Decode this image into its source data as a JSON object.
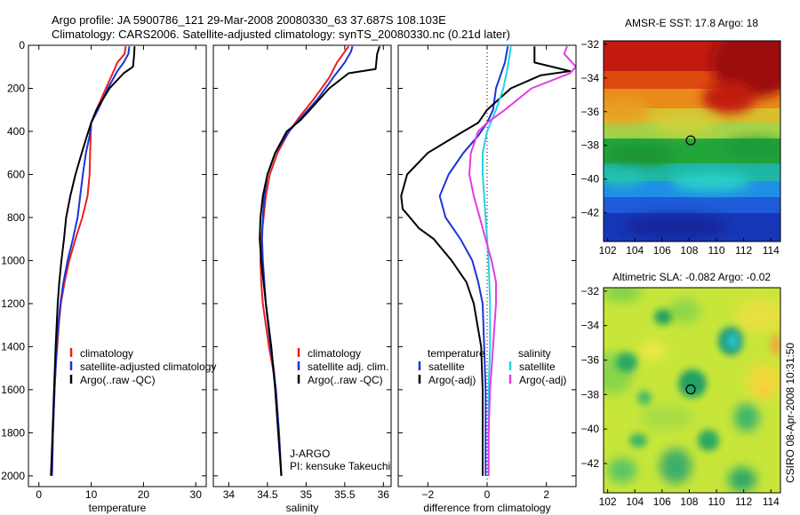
{
  "header": {
    "line1": "Argo profile: JA 5900786_121 29-Mar-2008 20080330_63 37.687S 108.103E",
    "line2": "Climatology: CARS2006. Satellite-adjusted climatology: synTS_20080330.nc (0.21d later)"
  },
  "side_note": "CSIRO 08-Apr-2008 10:31:50",
  "colors": {
    "climatology": "#e8201e",
    "satellite": "#1a35d6",
    "argo": "#000000",
    "satellite_salinity_diff": "#22d4e4",
    "argo_salinity_diff": "#e23ce6"
  },
  "chart_data": [
    {
      "type": "line",
      "xlabel": "temperature",
      "xlim": [
        -2,
        32
      ],
      "ylim": [
        0,
        2050
      ],
      "y_reversed": true,
      "xticks": [
        0,
        10,
        20,
        30
      ],
      "yticks": [
        0,
        200,
        400,
        600,
        800,
        1000,
        1200,
        1400,
        1600,
        1800,
        2000
      ],
      "series": [
        {
          "name": "climatology",
          "color": "#e8201e",
          "depth": [
            5,
            40,
            80,
            120,
            200,
            300,
            360,
            420,
            500,
            600,
            700,
            800,
            900,
            1000,
            1100,
            1200,
            1300,
            1400,
            1500,
            1600,
            1800,
            2000
          ],
          "values": [
            16.6,
            16.4,
            15.0,
            14.3,
            12.8,
            11.0,
            10.0,
            9.9,
            9.8,
            9.7,
            9.3,
            8.3,
            7.0,
            5.8,
            4.9,
            4.2,
            3.8,
            3.5,
            3.2,
            3.0,
            2.7,
            2.5
          ]
        },
        {
          "name": "satellite-adjusted climatology",
          "color": "#1a35d6",
          "depth": [
            5,
            40,
            80,
            120,
            200,
            300,
            360,
            420,
            500,
            600,
            700,
            800,
            900,
            1000,
            1100,
            1200,
            1300,
            1400,
            1500,
            1600,
            1800,
            2000
          ],
          "values": [
            17.3,
            17.1,
            16.2,
            15.0,
            13.2,
            11.3,
            10.0,
            9.7,
            9.0,
            8.4,
            7.9,
            7.4,
            6.5,
            5.5,
            4.7,
            4.1,
            3.7,
            3.4,
            3.2,
            3.0,
            2.7,
            2.5
          ]
        },
        {
          "name": "Argo(..raw -QC)",
          "color": "#000000",
          "depth": [
            5,
            50,
            100,
            130,
            200,
            300,
            360,
            420,
            500,
            600,
            700,
            800,
            900,
            1000,
            1100,
            1200,
            1400,
            1600,
            1800,
            2000
          ],
          "values": [
            18.3,
            18.2,
            18.0,
            16.2,
            13.5,
            11.0,
            10.0,
            9.2,
            8.2,
            7.0,
            6.0,
            5.2,
            4.8,
            4.3,
            3.9,
            3.6,
            3.2,
            2.9,
            2.6,
            2.3
          ]
        }
      ],
      "legend": {
        "items": [
          "climatology",
          "satellite-adjusted climatology",
          "Argo(..raw -QC)"
        ],
        "colors": [
          "#e8201e",
          "#1a35d6",
          "#000000"
        ]
      }
    },
    {
      "type": "line",
      "xlabel": "salinity",
      "xlim": [
        33.8,
        36.1
      ],
      "ylim": [
        0,
        2050
      ],
      "y_reversed": true,
      "xticks": [
        34,
        34.5,
        35,
        35.5,
        36
      ],
      "xticklabels": [
        "34",
        "34.5",
        "35",
        "35.5",
        "36"
      ],
      "series": [
        {
          "name": "climatology",
          "color": "#e8201e",
          "depth": [
            5,
            30,
            80,
            150,
            250,
            330,
            400,
            500,
            600,
            700,
            800,
            900,
            1000,
            1100,
            1200,
            1300,
            1400,
            1500,
            1600,
            1800,
            2000
          ],
          "values": [
            35.55,
            35.5,
            35.4,
            35.3,
            35.1,
            34.92,
            34.78,
            34.63,
            34.53,
            34.48,
            34.45,
            34.42,
            34.41,
            34.42,
            34.44,
            34.48,
            34.52,
            34.57,
            34.61,
            34.65,
            34.68
          ]
        },
        {
          "name": "satellite adj. clim.",
          "color": "#1a35d6",
          "depth": [
            5,
            30,
            80,
            150,
            250,
            330,
            400,
            500,
            600,
            700,
            800,
            900,
            1000,
            1100,
            1200,
            1300,
            1400,
            1500,
            1600,
            1800,
            2000
          ],
          "values": [
            35.6,
            35.58,
            35.5,
            35.35,
            35.15,
            34.95,
            34.78,
            34.6,
            34.5,
            34.46,
            34.44,
            34.43,
            34.44,
            34.46,
            34.48,
            34.51,
            34.54,
            34.58,
            34.61,
            34.65,
            34.68
          ]
        },
        {
          "name": "Argo(..raw -QC)",
          "color": "#000000",
          "depth": [
            5,
            40,
            110,
            130,
            200,
            300,
            350,
            400,
            500,
            600,
            700,
            800,
            900,
            1000,
            1100,
            1200,
            1400,
            1600,
            1800,
            2000
          ],
          "values": [
            35.95,
            35.92,
            35.9,
            35.55,
            35.3,
            35.05,
            34.92,
            34.75,
            34.6,
            34.5,
            34.44,
            34.41,
            34.4,
            34.42,
            34.45,
            34.48,
            34.55,
            34.6,
            34.64,
            34.68
          ]
        }
      ],
      "legend": {
        "items": [
          "climatology",
          "satellite adj. clim.",
          "Argo(..raw -QC)"
        ],
        "colors": [
          "#e8201e",
          "#1a35d6",
          "#000000"
        ]
      },
      "annotation": [
        "J-ARGO",
        "PI: kensuke Takeuchi"
      ]
    },
    {
      "type": "line",
      "xlabel": "difference from climatology",
      "xlim": [
        -3,
        3
      ],
      "ylim": [
        0,
        2050
      ],
      "y_reversed": true,
      "xticks": [
        -2,
        0,
        2
      ],
      "zero_line": 0,
      "series": [
        {
          "name": "temperature satellite",
          "color": "#1a35d6",
          "depth": [
            5,
            80,
            200,
            300,
            360,
            420,
            500,
            600,
            700,
            800,
            900,
            1000,
            1100,
            1200,
            1400,
            1600,
            1800,
            2000
          ],
          "values": [
            0.7,
            0.6,
            0.3,
            0.2,
            0.0,
            -0.3,
            -0.8,
            -1.3,
            -1.6,
            -1.4,
            -0.9,
            -0.5,
            -0.3,
            -0.15,
            -0.1,
            -0.05,
            -0.05,
            -0.05
          ]
        },
        {
          "name": "temperature Argo(-adj)",
          "color": "#000000",
          "depth": [
            5,
            80,
            120,
            140,
            200,
            300,
            360,
            400,
            500,
            600,
            700,
            760,
            800,
            850,
            900,
            1000,
            1100,
            1200,
            1400,
            1600,
            1800,
            2000
          ],
          "values": [
            1.6,
            1.6,
            2.8,
            1.8,
            0.8,
            0.0,
            -0.3,
            -0.8,
            -2.0,
            -2.7,
            -2.9,
            -2.85,
            -2.6,
            -2.3,
            -1.8,
            -1.2,
            -0.7,
            -0.45,
            -0.2,
            -0.15,
            -0.15,
            -0.15
          ]
        },
        {
          "name": "salinity satellite",
          "color": "#22d4e4",
          "depth": [
            5,
            100,
            200,
            300,
            400,
            500,
            600,
            700,
            800,
            900,
            1000,
            1200,
            1400,
            1600,
            1800,
            2000
          ],
          "values": [
            0.8,
            0.7,
            0.55,
            0.3,
            0.0,
            -0.15,
            -0.15,
            -0.1,
            -0.05,
            0.0,
            0.05,
            0.1,
            0.1,
            0.05,
            0.05,
            0.05
          ]
        },
        {
          "name": "salinity Argo(-adj)",
          "color": "#e23ce6",
          "depth": [
            5,
            40,
            100,
            130,
            200,
            300,
            360,
            400,
            500,
            600,
            700,
            800,
            900,
            1000,
            1100,
            1200,
            1400,
            1600,
            1800,
            2000
          ],
          "values": [
            2.7,
            2.6,
            3.0,
            2.8,
            1.5,
            0.6,
            0.0,
            -0.3,
            -0.55,
            -0.6,
            -0.45,
            -0.25,
            -0.05,
            0.15,
            0.3,
            0.3,
            0.2,
            0.1,
            0.05,
            0.05
          ]
        }
      ],
      "legend": {
        "groups": [
          {
            "title": "temperature",
            "items": [
              "satellite",
              "Argo(-adj)"
            ],
            "colors": [
              "#1a35d6",
              "#000000"
            ]
          },
          {
            "title": "salinity",
            "items": [
              "satellite",
              "Argo(-adj)"
            ],
            "colors": [
              "#22d4e4",
              "#e23ce6"
            ]
          }
        ]
      }
    },
    {
      "type": "heatmap",
      "title": "AMSR-E SST: 17.8 Argo: 18",
      "xlim": [
        101.7,
        114.7
      ],
      "ylim": [
        -43.7,
        -31.8
      ],
      "xticks": [
        102,
        104,
        106,
        108,
        110,
        112,
        114
      ],
      "yticks": [
        -32,
        -34,
        -36,
        -38,
        -40,
        -42
      ],
      "marker": {
        "lon": 108.1,
        "lat": -37.7
      },
      "description_colormap": "jet, warm north to cold south"
    },
    {
      "type": "heatmap",
      "title": "Altimetric SLA: -0.082 Argo: -0.02",
      "xlim": [
        101.7,
        114.7
      ],
      "ylim": [
        -43.7,
        -31.8
      ],
      "xticks": [
        102,
        104,
        106,
        108,
        110,
        112,
        114
      ],
      "yticks": [
        -32,
        -34,
        -36,
        -38,
        -40,
        -42
      ],
      "marker": {
        "lon": 108.1,
        "lat": -37.7
      }
    }
  ]
}
